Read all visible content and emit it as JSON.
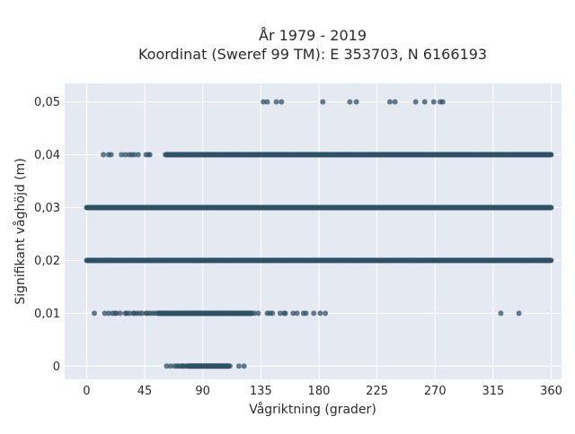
{
  "chart_data": {
    "type": "scatter",
    "title": [
      "År 1979 - 2019",
      "Koordinat (Sweref 99 TM): E 353703, N 6166193"
    ],
    "xlabel": "Vågriktning (grader)",
    "ylabel": "Signifikant våghöjd (m)",
    "xlim": [
      -17,
      368
    ],
    "ylim": [
      -0.0025,
      0.0535
    ],
    "xticks": [
      0,
      45,
      90,
      135,
      180,
      225,
      270,
      315,
      360
    ],
    "xtick_labels": [
      "0",
      "45",
      "90",
      "135",
      "180",
      "225",
      "270",
      "315",
      "360"
    ],
    "yticks": [
      0,
      0.01,
      0.02,
      0.03,
      0.04,
      0.05
    ],
    "ytick_labels": [
      "0",
      "0,01",
      "0,02",
      "0,03",
      "0,04",
      "0,05"
    ],
    "grid": true,
    "marker_color": "#2f5166",
    "plot_background": "#e5e9f1",
    "rows": [
      {
        "y": 0.05,
        "x": [
          137,
          140,
          147,
          151,
          183,
          204,
          209,
          235,
          239,
          255,
          262,
          269,
          274,
          276
        ]
      },
      {
        "y": 0.04,
        "dense_ranges": [
          [
            62,
            360
          ]
        ],
        "x": [
          13,
          17,
          19,
          27,
          30,
          33,
          35,
          37,
          40,
          46,
          48,
          49,
          61,
          67,
          71,
          74,
          77,
          79,
          84
        ]
      },
      {
        "y": 0.03,
        "dense_ranges": [
          [
            0,
            360
          ]
        ],
        "x": []
      },
      {
        "y": 0.02,
        "dense_ranges": [
          [
            0,
            360
          ]
        ],
        "x": []
      },
      {
        "y": 0.01,
        "dense_ranges": [
          [
            56,
            128
          ]
        ],
        "x": [
          6,
          14,
          17,
          20,
          22,
          23,
          26,
          30,
          31,
          33,
          36,
          37,
          39,
          41,
          43,
          46,
          47,
          49,
          51,
          53,
          55,
          130,
          133,
          140,
          142,
          144,
          150,
          153,
          154,
          160,
          163,
          168,
          170,
          176,
          181,
          185,
          321,
          335
        ]
      },
      {
        "y": 0,
        "dense_ranges": [
          [
            78,
            110
          ]
        ],
        "x": [
          62,
          65,
          68,
          70,
          71,
          73,
          74,
          75,
          76,
          111,
          118,
          122
        ]
      }
    ]
  }
}
